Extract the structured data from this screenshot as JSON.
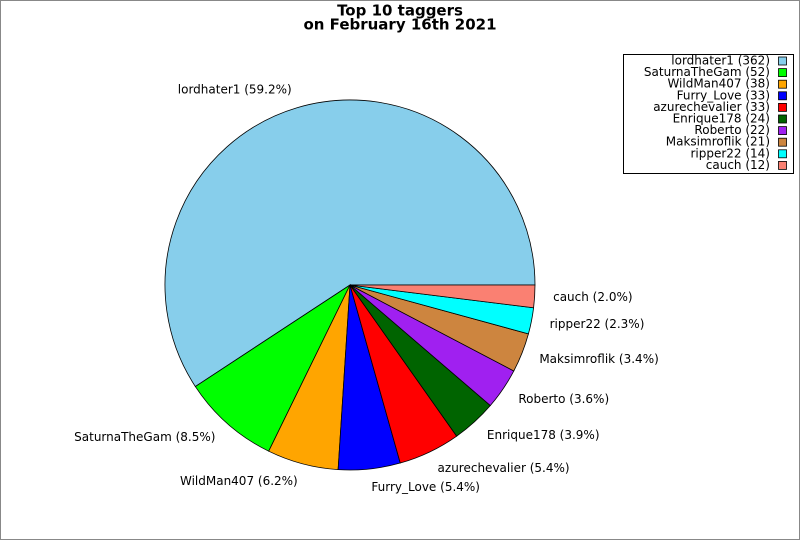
{
  "chart_data": {
    "type": "pie",
    "title": "Top 10 taggers",
    "subtitle": "on February 16th 2021",
    "values": [
      362,
      52,
      38,
      33,
      33,
      24,
      22,
      21,
      14,
      12
    ],
    "slice_labels": [
      "lordhater1 (59.2%)",
      "SaturnaTheGam (8.5%)",
      "WildMan407 (6.2%)",
      "Furry_Love (5.4%)",
      "azurechevalier (5.4%)",
      "Enrique178 (3.9%)",
      "Roberto (3.6%)",
      "Maksimroflik (3.4%)",
      "ripper22 (2.3%)",
      "cauch (2.0%)"
    ],
    "legend_labels": [
      "lordhater1 (362)",
      "SaturnaTheGam (52)",
      "WildMan407 (38)",
      "Furry_Love (33)",
      "azurechevalier (33)",
      "Enrique178 (24)",
      "Roberto (22)",
      "Maksimroflik (21)",
      "ripper22 (14)",
      "cauch (12)"
    ],
    "colors": [
      "#87ceeb",
      "#00ff00",
      "#ffa500",
      "#0000ff",
      "#ff0000",
      "#006400",
      "#a020f0",
      "#cd853f",
      "#00ffff",
      "#fa8072"
    ],
    "legend": "upper right"
  }
}
